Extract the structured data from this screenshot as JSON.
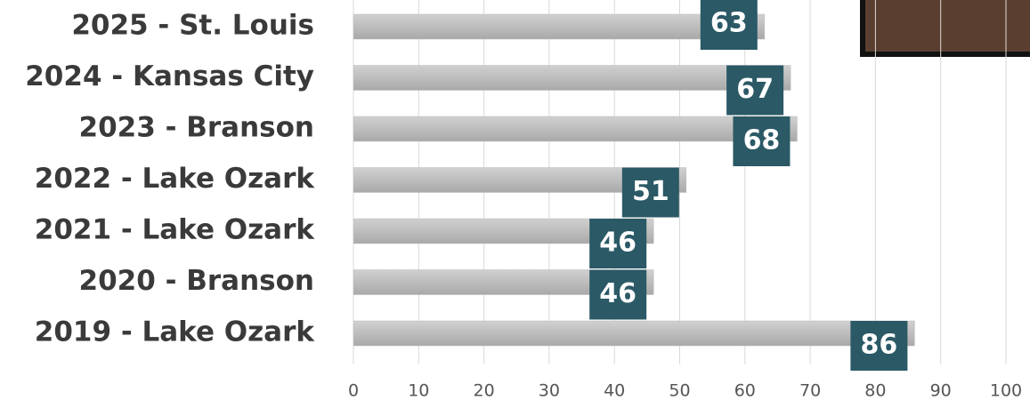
{
  "chart_data": {
    "type": "bar",
    "orientation": "horizontal",
    "categories": [
      "2025 - St. Louis",
      "2024 - Kansas City",
      "2023 - Branson",
      "2022 - Lake Ozark",
      "2021 - Lake Ozark",
      "2020 - Branson",
      "2019 - Lake Ozark"
    ],
    "values": [
      63,
      67,
      68,
      51,
      46,
      46,
      86
    ],
    "color": "#bdbdbd",
    "label_color": "#2b5966",
    "xlim": [
      0,
      100
    ],
    "xticks": [
      0,
      10,
      20,
      30,
      40,
      50,
      60,
      70,
      80,
      90,
      100
    ],
    "grid": true
  }
}
